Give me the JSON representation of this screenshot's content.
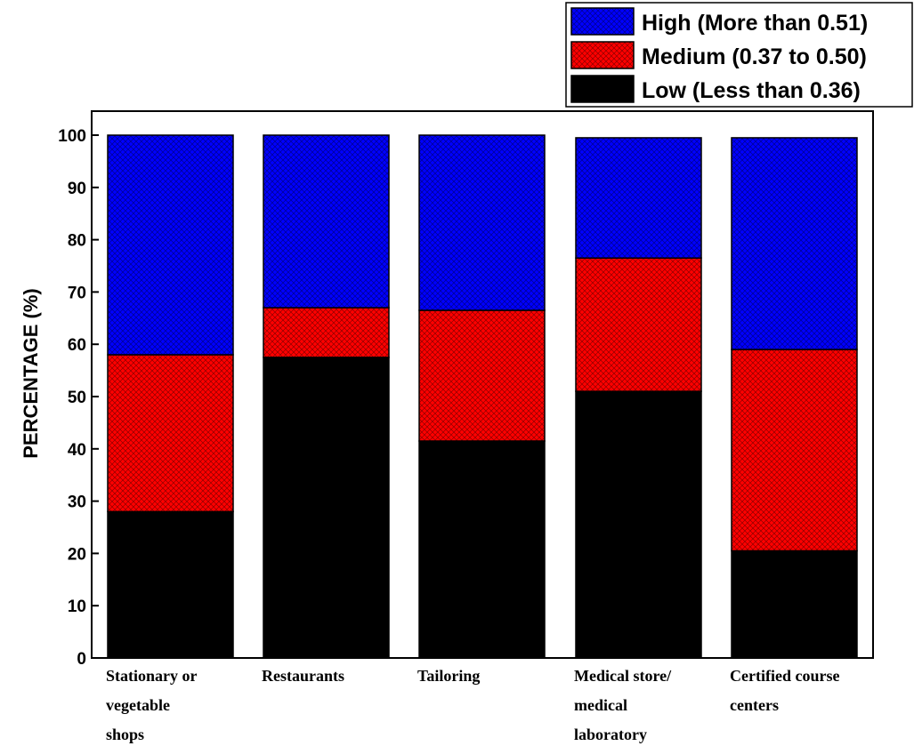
{
  "chart_data": {
    "type": "bar",
    "stacked": true,
    "categories": [
      [
        "Stationary or",
        "vegetable",
        "shops"
      ],
      [
        "Restaurants"
      ],
      [
        "Tailoring"
      ],
      [
        "Medical store/",
        "medical",
        "laboratory"
      ],
      [
        "Certified course",
        "centers"
      ]
    ],
    "series": [
      {
        "name": "Low (Less than 0.36)",
        "color": "#000000",
        "values": [
          28,
          57.5,
          41.5,
          51,
          20.5
        ]
      },
      {
        "name": "Medium (0.37 to 0.50)",
        "color": "#ff0000",
        "values": [
          30,
          9.5,
          25,
          25.5,
          38.5
        ]
      },
      {
        "name": "High (More than 0.51)",
        "color": "#0000ff",
        "values": [
          42,
          33,
          33.5,
          23,
          40.5
        ]
      }
    ],
    "legend_order": [
      "High (More than 0.51)",
      "Medium (0.37 to 0.50)",
      "Low (Less than 0.36)"
    ],
    "ylabel": "PERCENTAGE (%)",
    "xlabel": "",
    "ylim": [
      0,
      100
    ],
    "yticks": [
      0,
      10,
      20,
      30,
      40,
      50,
      60,
      70,
      80,
      90,
      100
    ],
    "legend_position": "top-right",
    "pattern": "crosshatch"
  }
}
